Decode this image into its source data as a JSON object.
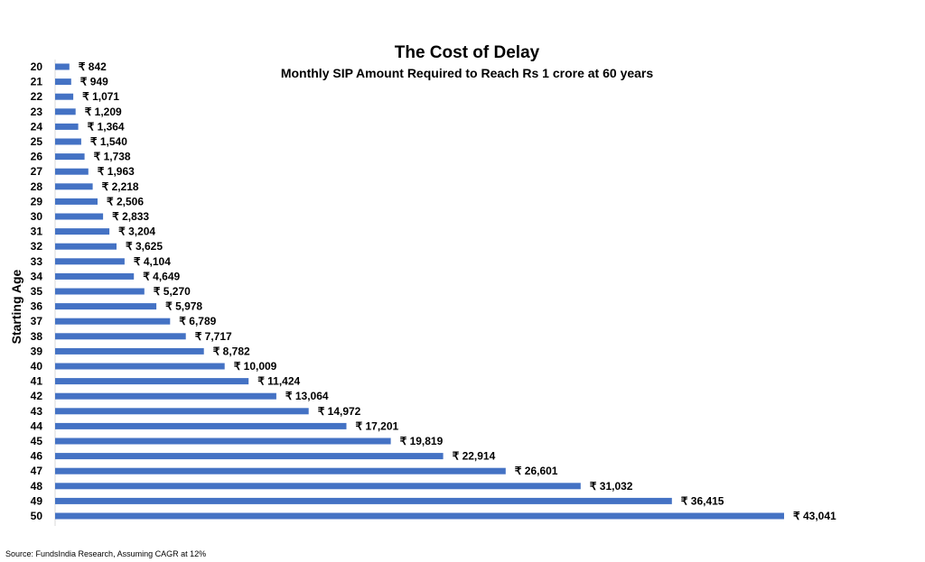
{
  "chart_data": {
    "type": "bar",
    "orientation": "horizontal",
    "title": "The Cost of Delay",
    "subtitle": "Monthly SIP Amount Required to Reach Rs 1 crore at 60 years",
    "ylabel": "Starting Age",
    "xlabel": "",
    "currency_symbol": "₹",
    "categories": [
      "20",
      "21",
      "22",
      "23",
      "24",
      "25",
      "26",
      "27",
      "28",
      "29",
      "30",
      "31",
      "32",
      "33",
      "34",
      "35",
      "36",
      "37",
      "38",
      "39",
      "40",
      "41",
      "42",
      "43",
      "44",
      "45",
      "46",
      "47",
      "48",
      "49",
      "50"
    ],
    "values": [
      842,
      949,
      1071,
      1209,
      1364,
      1540,
      1738,
      1963,
      2218,
      2506,
      2833,
      3204,
      3625,
      4104,
      4649,
      5270,
      5978,
      6789,
      7717,
      8782,
      10009,
      11424,
      13064,
      14972,
      17201,
      19819,
      22914,
      26601,
      31032,
      36415,
      43041
    ],
    "data_labels": [
      "₹ 842",
      "₹ 949",
      "₹ 1,071",
      "₹ 1,209",
      "₹ 1,364",
      "₹ 1,540",
      "₹ 1,738",
      "₹ 1,963",
      "₹ 2,218",
      "₹ 2,506",
      "₹ 2,833",
      "₹ 3,204",
      "₹ 3,625",
      "₹ 4,104",
      "₹ 4,649",
      "₹ 5,270",
      "₹ 5,978",
      "₹ 6,789",
      "₹ 7,717",
      "₹ 8,782",
      "₹ 10,009",
      "₹ 11,424",
      "₹ 13,064",
      "₹ 14,972",
      "₹ 17,201",
      "₹ 19,819",
      "₹ 22,914",
      "₹ 26,601",
      "₹ 31,032",
      "₹ 36,415",
      "₹ 43,041"
    ],
    "xlim": [
      0,
      43041
    ],
    "grid": false,
    "legend": "none",
    "bar_color": "#4472C4"
  },
  "source_note": "Source: FundsIndia Research, Assuming CAGR at 12%"
}
